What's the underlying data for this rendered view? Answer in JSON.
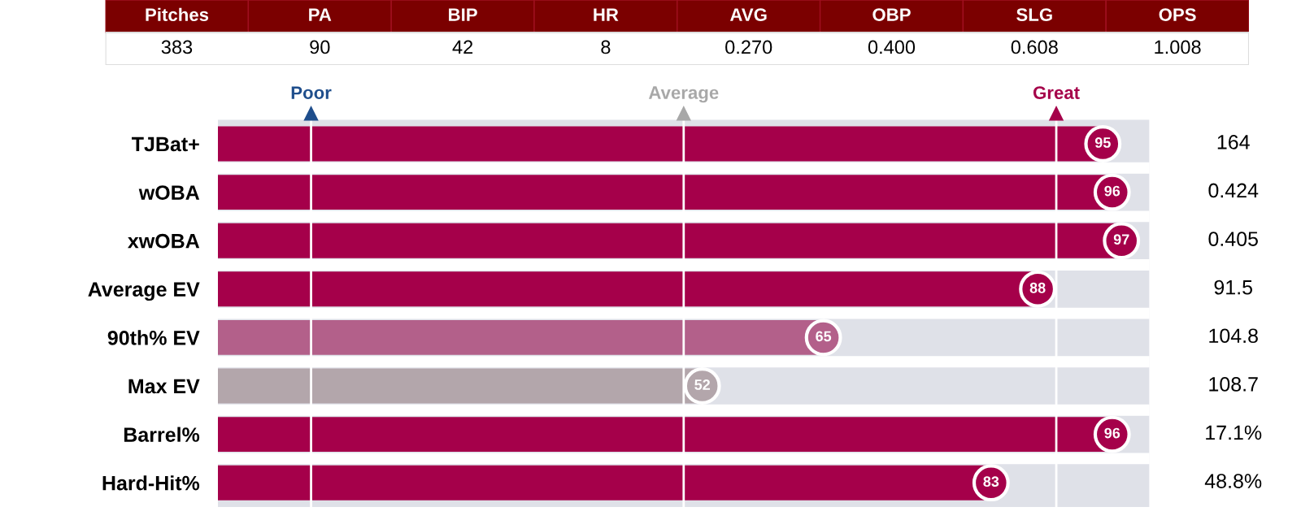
{
  "chart_data": [
    {
      "type": "other",
      "categories": [
        "Pitches",
        "PA",
        "BIP",
        "HR",
        "AVG",
        "OBP",
        "SLG",
        "OPS"
      ],
      "color": "#7b0000",
      "annotations": [
        "383",
        "90",
        "42",
        "8",
        "0.270",
        "0.400",
        "0.608",
        "1.008"
      ]
    },
    {
      "type": "bar",
      "orientation": "horizontal",
      "categories": [
        "TJBat+",
        "wOBA",
        "xwOBA",
        "Average EV",
        "90th% EV",
        "Max EV",
        "Barrel%",
        "Hard-Hit%"
      ],
      "values": [
        95,
        96,
        97,
        88,
        65,
        52,
        96,
        83
      ],
      "colors": [
        "#a5004a",
        "#a5004a",
        "#a5004a",
        "#a5004a",
        "#b3608a",
        "#b3a6ab",
        "#a5004a",
        "#a5004a"
      ],
      "xlim": [
        0,
        100
      ],
      "tick_labels": "y",
      "data_labels": true,
      "bands": [
        {
          "axis": "x",
          "from": 0,
          "to": 100,
          "color": "#dfe1e8"
        }
      ],
      "ref_lines": [
        {
          "axis": "x",
          "value": 10,
          "label": "Poor",
          "color": "#ffffff"
        },
        {
          "axis": "x",
          "value": 50,
          "label": "Average",
          "color": "#ffffff"
        },
        {
          "axis": "x",
          "value": 90,
          "label": "Great",
          "color": "#ffffff"
        }
      ],
      "annotations": [
        "164",
        "0.424",
        "0.405",
        "91.5",
        "104.8",
        "108.7",
        "17.1%",
        "48.8%"
      ]
    }
  ]
}
